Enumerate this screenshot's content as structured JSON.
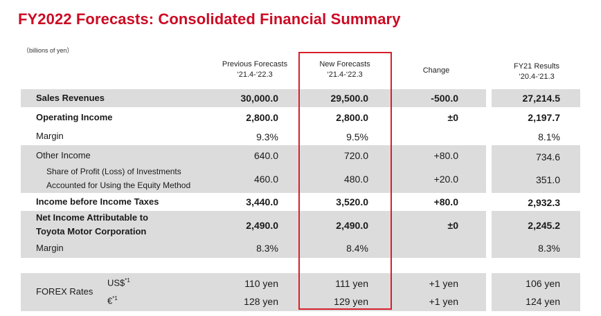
{
  "title": "FY2022 Forecasts: Consolidated Financial Summary",
  "unit_note": "（billions of yen）",
  "accent_color": "#cc0a24",
  "highlight_box_color": "#d81e2a",
  "columns": {
    "prev": {
      "line1": "Previous Forecasts",
      "line2": "‘21.4-‘22.3"
    },
    "new": {
      "line1": "New Forecasts",
      "line2": "‘21.4-‘22.3"
    },
    "change": {
      "line1": "Change"
    },
    "fy21": {
      "line1": "FY21 Results",
      "line2": "‘20.4-‘21.3"
    }
  },
  "rows": {
    "sales": {
      "label": "Sales Revenues",
      "prev": "30,000.0",
      "new": "29,500.0",
      "change": "-500.0",
      "fy21": "27,214.5"
    },
    "op_income": {
      "label": "Operating Income",
      "prev": "2,800.0",
      "new": "2,800.0",
      "change": "±0",
      "fy21": "2,197.7"
    },
    "margin1": {
      "label": "Margin",
      "prev": "9.3%",
      "new": "9.5%",
      "change": "",
      "fy21": "8.1%"
    },
    "other_income": {
      "label": "Other Income",
      "prev": "640.0",
      "new": "720.0",
      "change": "+80.0",
      "fy21": "734.6"
    },
    "equity": {
      "label1": "Share of Profit (Loss) of Investments",
      "label2": "Accounted for Using the Equity Method",
      "prev": "460.0",
      "new": "480.0",
      "change": "+20.0",
      "fy21": "351.0"
    },
    "pretax": {
      "label": "Income before Income Taxes",
      "prev": "3,440.0",
      "new": "3,520.0",
      "change": "+80.0",
      "fy21": "2,932.3"
    },
    "net_income": {
      "label1": "Net Income Attributable to",
      "label2": "Toyota Motor Corporation",
      "prev": "2,490.0",
      "new": "2,490.0",
      "change": "±0",
      "fy21": "2,245.2"
    },
    "margin2": {
      "label": "Margin",
      "prev": "8.3%",
      "new": "8.4%",
      "change": "",
      "fy21": "8.3%"
    }
  },
  "forex": {
    "label": "FOREX Rates",
    "usd": {
      "label": "US$",
      "note": "*1",
      "prev": "110 yen",
      "new": "111 yen",
      "change": "+1 yen",
      "fy21": "106 yen"
    },
    "eur": {
      "label": "€",
      "note": "*1",
      "prev": "128 yen",
      "new": "129 yen",
      "change": "+1 yen",
      "fy21": "124 yen"
    }
  }
}
